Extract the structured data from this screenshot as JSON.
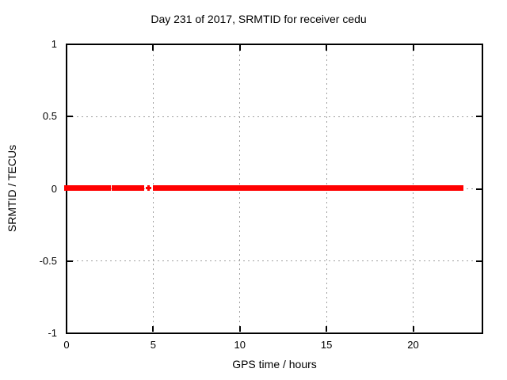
{
  "chart_data": {
    "type": "scatter",
    "title": "Day 231 of 2017, SRMTID for receiver cedu",
    "xlabel": "GPS time / hours",
    "ylabel": "SRMTID / TECUs",
    "xlim": [
      0,
      24
    ],
    "ylim": [
      -1,
      1
    ],
    "xticks": {
      "values": [
        0,
        5,
        10,
        15,
        20
      ],
      "labels": [
        "0",
        "5",
        "10",
        "15",
        "20"
      ]
    },
    "yticks": {
      "values": [
        -1,
        -0.5,
        0,
        0.5,
        1
      ],
      "labels": [
        "-1",
        "-0.5",
        "0",
        "0.5",
        "1"
      ]
    },
    "grid": true,
    "legend": "none",
    "tick_style": "inward-mirrored",
    "series": [
      {
        "name": "SRMTID",
        "color": "#ff0000",
        "marker": "plus",
        "y_constant": 0,
        "x_segments": [
          [
            0,
            2.4
          ],
          [
            2.75,
            4.35
          ],
          [
            5.1,
            22.75
          ]
        ],
        "isolated_points_x": [
          4.75
        ]
      }
    ],
    "colors": {
      "grid": "#a0a0a0",
      "axis": "#000000",
      "text": "#000000",
      "background": "#ffffff"
    }
  }
}
